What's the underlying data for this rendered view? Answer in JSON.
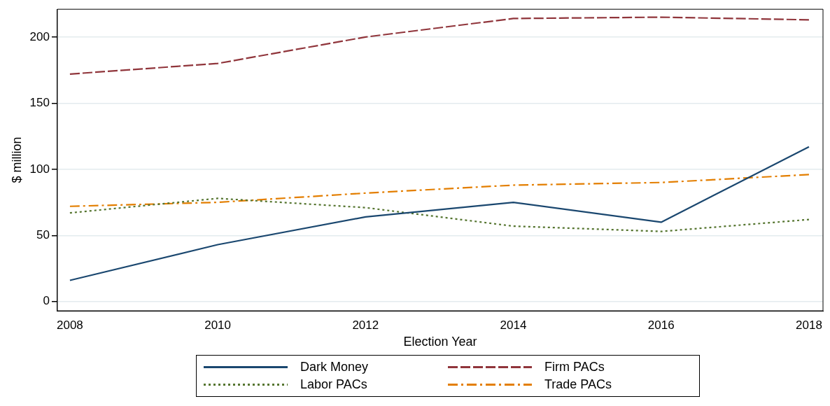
{
  "chart_data": {
    "type": "line",
    "xlabel": "Election Year",
    "ylabel": "$ million",
    "x": [
      2008,
      2010,
      2012,
      2014,
      2016,
      2018
    ],
    "series": [
      {
        "name": "Dark Money",
        "color": "#1a476f",
        "line_style": "solid",
        "values": [
          16,
          43,
          64,
          75,
          60,
          117
        ]
      },
      {
        "name": "Firm PACs",
        "color": "#90353b",
        "line_style": "dashed",
        "values": [
          172,
          180,
          200,
          214,
          215,
          213
        ]
      },
      {
        "name": "Labor PACs",
        "color": "#55752f",
        "line_style": "dotted",
        "values": [
          67,
          78,
          71,
          57,
          53,
          62
        ]
      },
      {
        "name": "Trade PACs",
        "color": "#e37e00",
        "line_style": "dashdot",
        "values": [
          72,
          75,
          82,
          88,
          90,
          96
        ]
      }
    ],
    "xlim": [
      2007.83,
      2018.19
    ],
    "xticks": [
      2008,
      2010,
      2012,
      2014,
      2016,
      2018
    ],
    "ylim": [
      -7,
      221
    ],
    "yticks": [
      0,
      50,
      100,
      150,
      200
    ],
    "grid": "y",
    "legend": "bottom",
    "marker": "none"
  }
}
